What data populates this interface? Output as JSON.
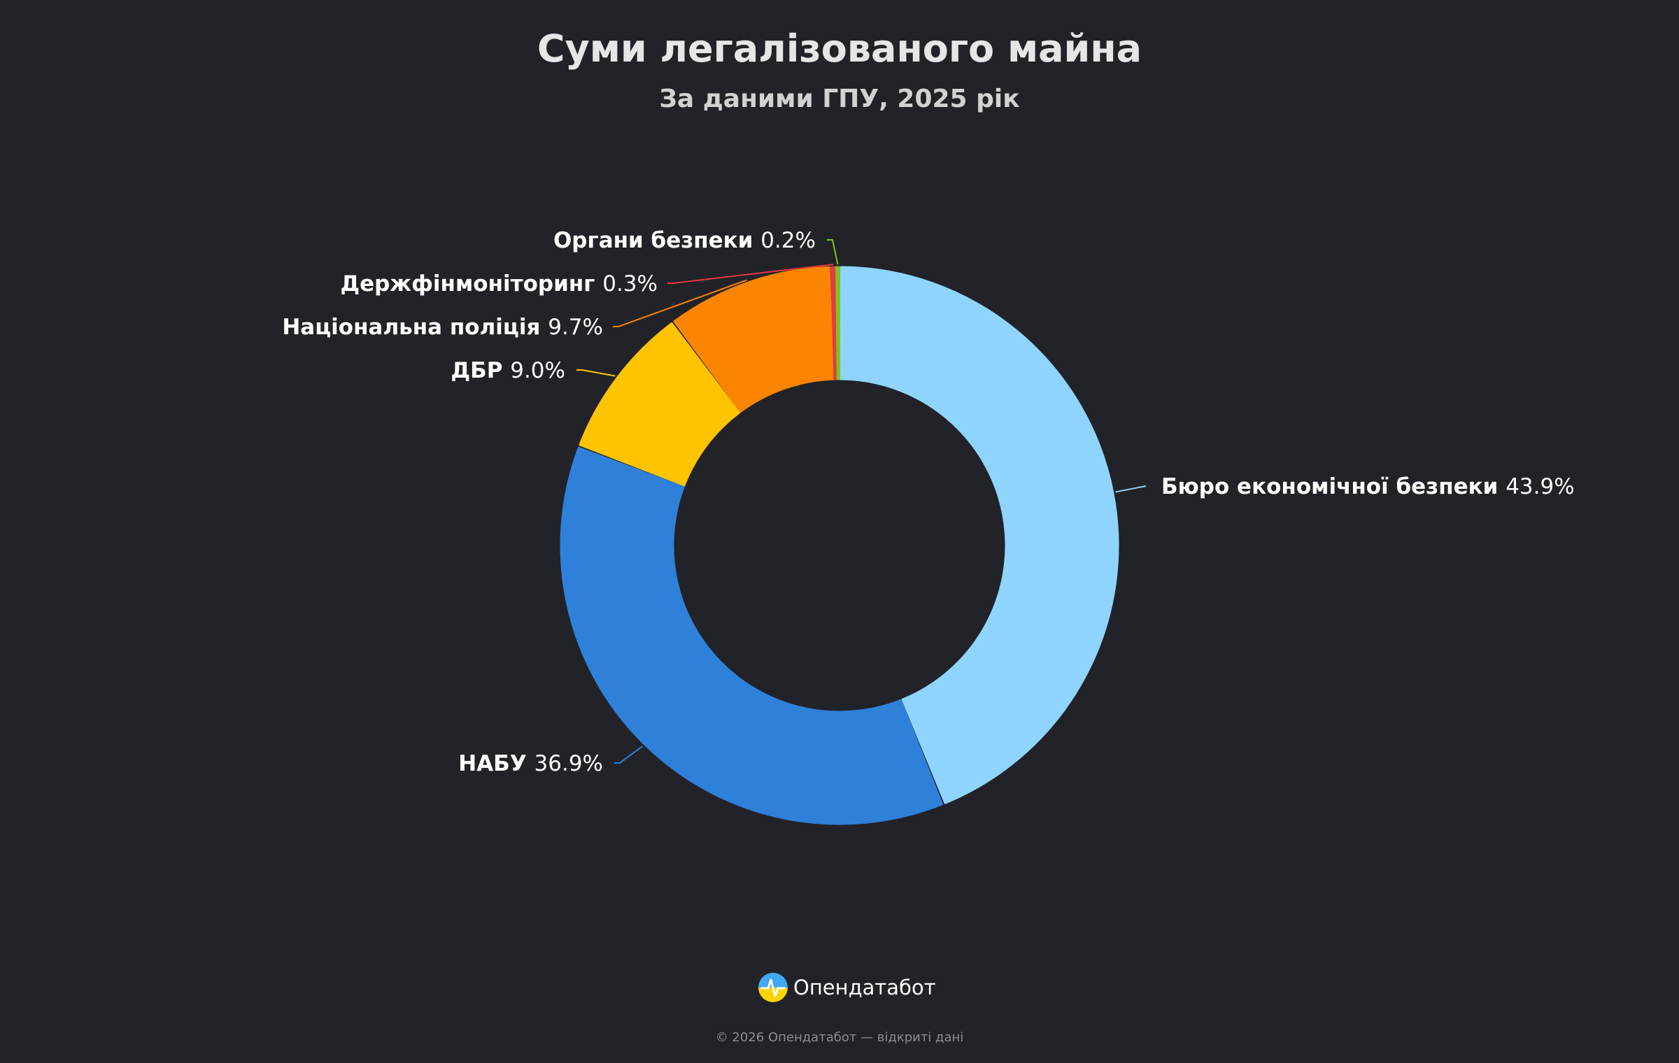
{
  "chart_data": {
    "type": "pie",
    "variant": "donut",
    "title": "Суми легалізованого майна",
    "subtitle": "За даними ГПУ, 2025 рік",
    "slices": [
      {
        "name": "Бюро економічної безпеки",
        "value": 43.9,
        "label": "43.9%",
        "color": "#8fd4fe"
      },
      {
        "name": "НАБУ",
        "value": 36.9,
        "label": "36.9%",
        "color": "#2f80d9"
      },
      {
        "name": "ДБР",
        "value": 9.0,
        "label": "9.0%",
        "color": "#ffc300"
      },
      {
        "name": "Національна поліція",
        "value": 9.7,
        "label": "9.7%",
        "color": "#fb8500"
      },
      {
        "name": "Держфінмоніторинг",
        "value": 0.3,
        "label": "0.3%",
        "color": "#e63946"
      },
      {
        "name": "Органи безпеки",
        "value": 0.2,
        "label": "0.2%",
        "color": "#7cc61f"
      }
    ]
  },
  "branding": {
    "logo_text": "Опендатабот",
    "footer": "© 2026 Опендатабот — відкриті дані"
  }
}
